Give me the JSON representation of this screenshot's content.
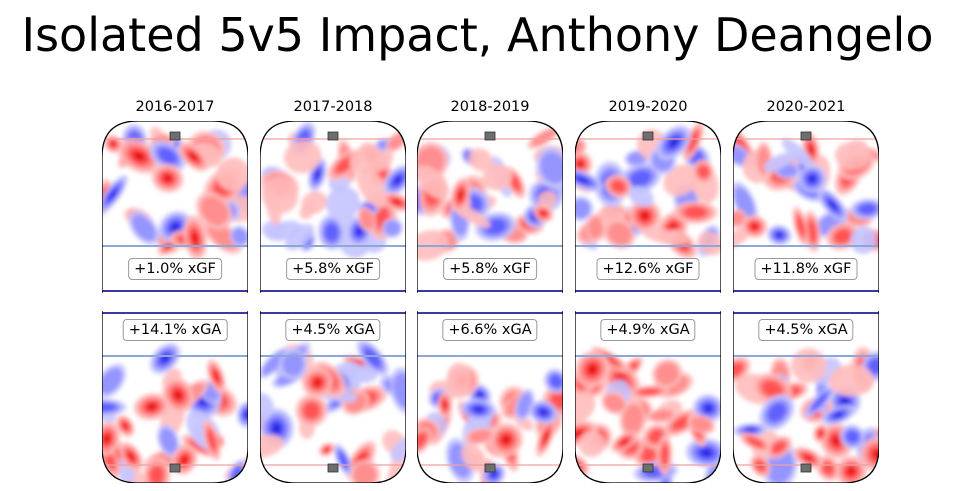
{
  "title": "Isolated 5v5 Impact, Anthony Deangelo",
  "chart_data": {
    "type": "heatmap",
    "title": "Isolated 5v5 Impact, Anthony Deangelo",
    "colormap": {
      "positive": "#ff0000",
      "neutral": "#ffffff",
      "negative": "#0000ff"
    },
    "seasons": [
      {
        "season": "2016-2017",
        "xgf": "+1.0% xGF",
        "xga": "+14.1% xGA"
      },
      {
        "season": "2017-2018",
        "xgf": "+5.8% xGF",
        "xga": "+4.5% xGA"
      },
      {
        "season": "2018-2019",
        "xgf": "+5.8% xGF",
        "xga": "+6.6% xGA"
      },
      {
        "season": "2019-2020",
        "xgf": "+12.6% xGF",
        "xga": "+4.9% xGA"
      },
      {
        "season": "2020-2021",
        "xgf": "+11.8% xGF",
        "xga": "+4.5% xGA"
      }
    ]
  }
}
